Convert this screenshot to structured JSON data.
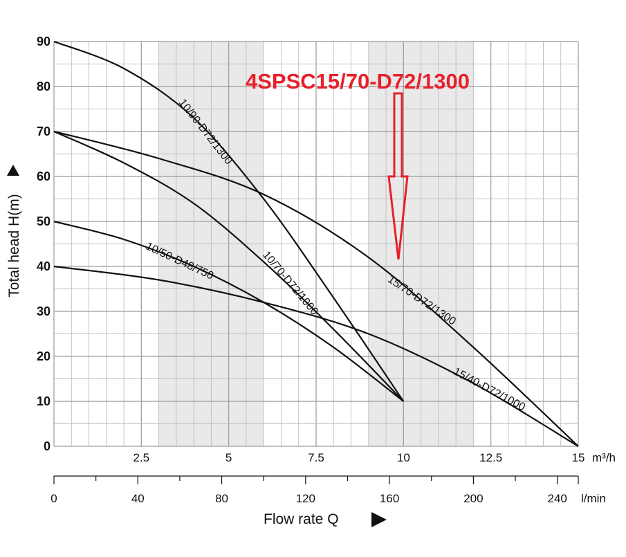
{
  "chart_data": {
    "type": "line",
    "title": "",
    "ylabel": "Total head H(m)",
    "xlabel": "Flow rate Q",
    "ylim": [
      0,
      90
    ],
    "xlim": [
      0,
      15
    ],
    "y_ticks": [
      "0",
      "10",
      "20",
      "30",
      "40",
      "50",
      "60",
      "70",
      "80",
      "90"
    ],
    "x_ticks_primary": [
      "2.5",
      "5",
      "7.5",
      "10",
      "12.5",
      "15"
    ],
    "x_ticks_primary_values": [
      2.5,
      5,
      7.5,
      10,
      12.5,
      15
    ],
    "x_unit_primary": "m³/h",
    "x_ticks_secondary": [
      "0",
      "40",
      "80",
      "120",
      "160",
      "200",
      "240"
    ],
    "x_ticks_secondary_values": [
      0,
      40,
      80,
      120,
      160,
      200,
      240
    ],
    "x_unit_secondary": "l/min",
    "grid": true,
    "shaded_bands_x": [
      [
        3,
        6
      ],
      [
        9,
        12
      ]
    ],
    "series": [
      {
        "name": "10/90-D72/1300",
        "x": [
          0,
          2,
          4,
          6,
          8,
          10
        ],
        "y": [
          90,
          84,
          73,
          55,
          33,
          10
        ]
      },
      {
        "name": "10/70-D72/1000",
        "x": [
          0,
          2,
          4,
          6,
          8,
          10
        ],
        "y": [
          70,
          63,
          54,
          41,
          26,
          10
        ]
      },
      {
        "name": "10/50-D48/750",
        "x": [
          0,
          2,
          4,
          6,
          8,
          10
        ],
        "y": [
          50,
          46,
          40,
          32,
          22,
          10
        ]
      },
      {
        "name": "15/70-D72/1300",
        "x": [
          0,
          3,
          6,
          9,
          12,
          15
        ],
        "y": [
          70,
          64,
          56,
          42,
          22,
          0
        ]
      },
      {
        "name": "15/40-D72/1000",
        "x": [
          0,
          3,
          6,
          9,
          12,
          15
        ],
        "y": [
          40,
          37,
          32,
          25,
          14,
          0
        ]
      }
    ],
    "annotation": {
      "text": "4SPSC15/70-D72/1300",
      "color": "#e8202a",
      "points_to_series": "15/70-D72/1300"
    }
  }
}
